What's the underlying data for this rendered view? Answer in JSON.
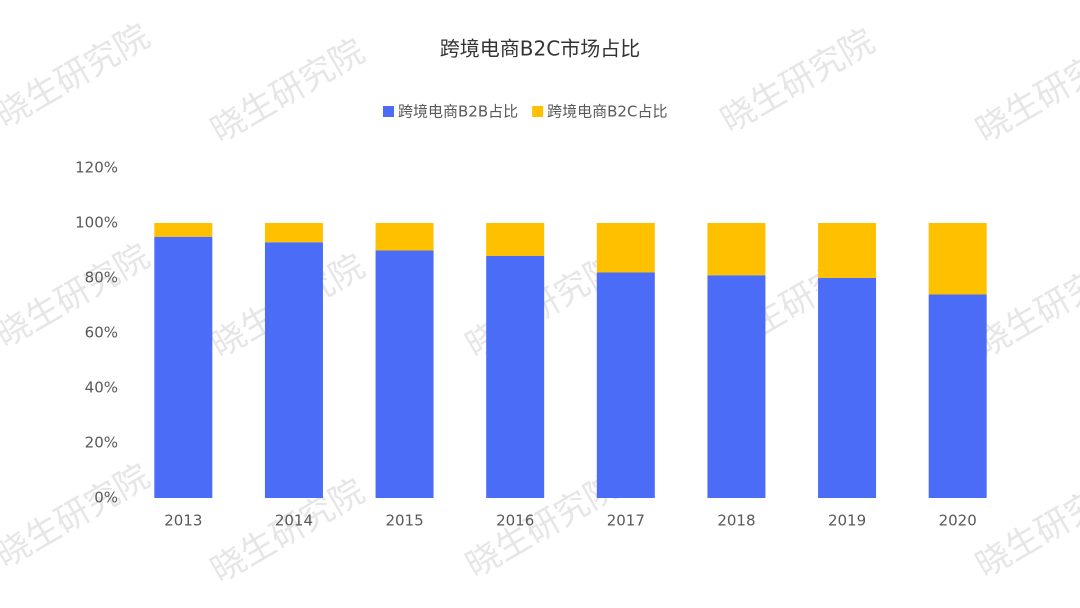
{
  "watermark": "晓生研究院",
  "chart_data": {
    "type": "stacked_bar",
    "title": "跨境电商B2C市场占比",
    "categories": [
      "2013",
      "2014",
      "2015",
      "2016",
      "2017",
      "2018",
      "2019",
      "2020"
    ],
    "series": [
      {
        "name": "跨境电商B2B占比",
        "color": "#4a6cf7",
        "values": [
          95,
          93,
          90,
          88,
          82,
          81,
          80,
          74
        ]
      },
      {
        "name": "跨境电商B2C占比",
        "color": "#ffc000",
        "values": [
          5,
          7,
          10,
          12,
          18,
          19,
          20,
          26
        ]
      }
    ],
    "ylim": [
      0,
      120
    ],
    "yticks": [
      {
        "value": 0,
        "label": "0%"
      },
      {
        "value": 20,
        "label": "20%"
      },
      {
        "value": 40,
        "label": "40%"
      },
      {
        "value": 60,
        "label": "60%"
      },
      {
        "value": 80,
        "label": "80%"
      },
      {
        "value": 100,
        "label": "100%"
      },
      {
        "value": 120,
        "label": "120%"
      }
    ],
    "grid": false
  }
}
